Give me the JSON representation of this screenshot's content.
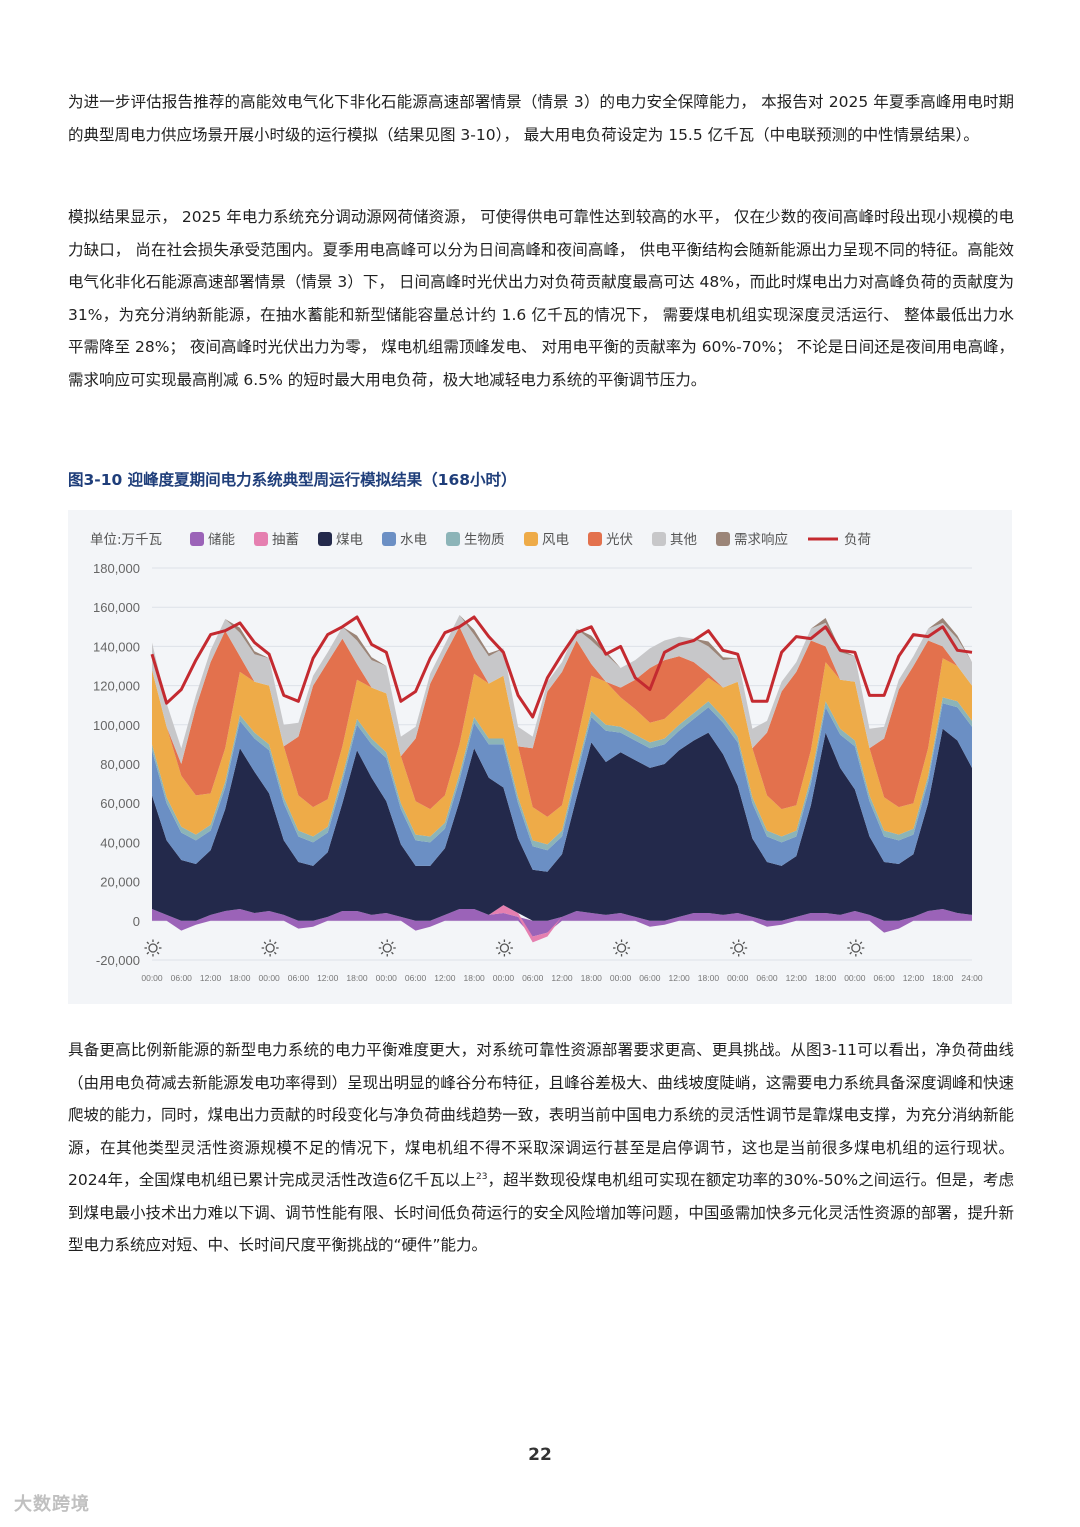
{
  "paragraphs": {
    "p1": "为进一步评估报告推荐的高能效电气化下非化石能源高速部署情景（情景 3）的电力安全保障能力， 本报告对 2025 年夏季高峰用电时期的典型周电力供应场景开展小时级的运行模拟（结果见图 3-10）， 最大用电负荷设定为 15.5 亿千瓦（中电联预测的中性情景结果）。",
    "p2": "模拟结果显示， 2025 年电力系统充分调动源网荷储资源， 可使得供电可靠性达到较高的水平， 仅在少数的夜间高峰时段出现小规模的电力缺口， 尚在社会损失承受范围内。夏季用电高峰可以分为日间高峰和夜间高峰， 供电平衡结构会随新能源出力呈现不同的特征。高能效电气化非化石能源高速部署情景（情景 3）下， 日间高峰时光伏出力对负荷贡献度最高可达 48%，而此时煤电出力对高峰负荷的贡献度为 31%，为充分消纳新能源，在抽水蓄能和新型储能容量总计约 1.6 亿千瓦的情况下， 需要煤电机组实现深度灵活运行、 整体最低出力水平需降至 28%； 夜间高峰时光伏出力为零， 煤电机组需顶峰发电、 对用电平衡的贡献率为 60%-70%； 不论是日间还是夜间用电高峰， 需求响应可实现最高削减 6.5% 的短时最大用电负荷，极大地减轻电力系统的平衡调节压力。",
    "p3_a": "具备更高比例新能源的新型电力系统的电力平衡难度更大，对系统可靠性资源部署要求更高、更具挑战。从图3-11可以看出，净负荷曲线（由用电负荷减去新能源发电功率得到）呈现出明显的峰谷分布特征，且峰谷差极大、曲线坡度陡峭，这需要电力系统具备深度调峰和快速爬坡的能力，同时，煤电出力贡献的时段变化与净负荷曲线趋势一致，表明当前中国电力系统的灵活性调节是靠煤电支撑，为充分消纳新能源，在其他类型灵活性资源规模不足的情况下，煤电机组不得不采取深调运行甚至是启停调节，这也是当前很多煤电机组的运行现状。2024年，全国煤电机组已累计完成灵活性改造6亿千瓦以上",
    "p3_sup": "23",
    "p3_b": "，超半数现役煤电机组可实现在额定功率的30%-50%之间运行。但是，考虑到煤电最小技术出力难以下调、调节性能有限、长时间低负荷运行的安全风险增加等问题，中国亟需加快多元化灵活性资源的部署，提升新型电力系统应对短、中、长时间尺度平衡挑战的“硬件”能力。"
  },
  "figure_title": "图3-10 迎峰度夏期间电力系统典型周运行模拟结果（168小时）",
  "page_number": "22",
  "watermark": "大数跨境",
  "chart_data": {
    "type": "area",
    "unit_label": "单位:万千瓦",
    "legend": [
      {
        "name": "储能",
        "color": "#9b63b8"
      },
      {
        "name": "抽蓄",
        "color": "#e57fb0"
      },
      {
        "name": "煤电",
        "color": "#23294b"
      },
      {
        "name": "水电",
        "color": "#6b8fc4"
      },
      {
        "name": "生物质",
        "color": "#8cb4b8"
      },
      {
        "name": "风电",
        "color": "#eeab48"
      },
      {
        "name": "光伏",
        "color": "#e3714d"
      },
      {
        "name": "其他",
        "color": "#c7c7c9"
      },
      {
        "name": "需求响应",
        "color": "#9b8578"
      },
      {
        "name": "负荷",
        "color": "#c42a30"
      }
    ],
    "ylim": [
      -20000,
      180000
    ],
    "yticks": [
      "180,000",
      "160,000",
      "140,000",
      "120,000",
      "100,000",
      "80,000",
      "60,000",
      "40,000",
      "20,000",
      "0",
      "-20,000"
    ],
    "xticks": [
      "00:00",
      "06:00",
      "12:00",
      "18:00",
      "00:00",
      "06:00",
      "12:00",
      "18:00",
      "00:00",
      "06:00",
      "12:00",
      "18:00",
      "00:00",
      "06:00",
      "12:00",
      "18:00",
      "00:00",
      "06:00",
      "12:00",
      "18:00",
      "00:00",
      "06:00",
      "12:00",
      "18:00",
      "00:00",
      "06:00",
      "12:00",
      "18:00",
      "24:00"
    ],
    "hours": [
      0,
      3,
      6,
      9,
      12,
      15,
      18,
      21,
      24,
      27,
      30,
      33,
      36,
      39,
      42,
      45,
      48,
      51,
      54,
      57,
      60,
      63,
      66,
      69,
      72,
      75,
      78,
      81,
      84,
      87,
      90,
      93,
      96,
      99,
      102,
      105,
      108,
      111,
      114,
      117,
      120,
      123,
      126,
      129,
      132,
      135,
      138,
      141,
      144,
      147,
      150,
      153,
      156,
      159,
      162,
      165,
      168
    ],
    "series": [
      {
        "name": "储能",
        "values": [
          6000,
          3000,
          -5000,
          -2000,
          3000,
          5000,
          6000,
          4000,
          5000,
          3000,
          -4000,
          -3000,
          2000,
          5000,
          5000,
          3000,
          4000,
          2000,
          -5000,
          -3000,
          3000,
          6000,
          6000,
          3000,
          4000,
          2000,
          -8000,
          -6000,
          2000,
          5000,
          4000,
          3000,
          4000,
          2000,
          -3000,
          -2000,
          2000,
          4000,
          4000,
          3000,
          4000,
          2000,
          -3000,
          -2000,
          2000,
          4000,
          4000,
          3000,
          5000,
          3000,
          -6000,
          -4000,
          2000,
          5000,
          6000,
          4000,
          3000
        ]
      },
      {
        "name": "抽蓄",
        "values": [
          0,
          0,
          0,
          0,
          0,
          0,
          0,
          0,
          0,
          0,
          0,
          0,
          0,
          0,
          0,
          0,
          0,
          0,
          0,
          0,
          0,
          0,
          0,
          0,
          4000,
          2000,
          -3000,
          -2000,
          0,
          0,
          0,
          0,
          0,
          0,
          0,
          0,
          0,
          0,
          0,
          0,
          0,
          0,
          0,
          0,
          0,
          0,
          0,
          0,
          0,
          0,
          0,
          0,
          0,
          0,
          0,
          0,
          0
        ]
      },
      {
        "name": "煤电",
        "values": [
          58000,
          38000,
          31000,
          29000,
          33000,
          52000,
          82000,
          72000,
          60000,
          38000,
          30000,
          28000,
          33000,
          55000,
          82000,
          70000,
          57000,
          37000,
          28000,
          28000,
          34000,
          55000,
          82000,
          70000,
          60000,
          38000,
          26000,
          25000,
          32000,
          58000,
          87000,
          78000,
          82000,
          80000,
          78000,
          80000,
          85000,
          88000,
          92000,
          82000,
          65000,
          40000,
          30000,
          28000,
          31000,
          55000,
          92000,
          75000,
          62000,
          40000,
          30000,
          29000,
          32000,
          55000,
          92000,
          88000,
          75000
        ]
      },
      {
        "name": "水电",
        "values": [
          23000,
          19000,
          14000,
          12000,
          10000,
          11000,
          14000,
          17000,
          22000,
          19000,
          13000,
          12000,
          10000,
          11000,
          13000,
          17000,
          22000,
          18000,
          13000,
          12000,
          10000,
          11000,
          13000,
          17000,
          22000,
          18000,
          12000,
          11000,
          9000,
          11000,
          13000,
          16000,
          10000,
          10000,
          10000,
          10000,
          10000,
          11000,
          13000,
          16000,
          22000,
          18000,
          13000,
          12000,
          10000,
          11000,
          13000,
          17000,
          22000,
          18000,
          13000,
          12000,
          10000,
          11000,
          13000,
          17000,
          21000
        ]
      },
      {
        "name": "生物质",
        "values": [
          3000,
          3000,
          3000,
          3000,
          3000,
          3000,
          3000,
          3000,
          3000,
          3000,
          3000,
          3000,
          3000,
          3000,
          3000,
          3000,
          3000,
          3000,
          3000,
          3000,
          3000,
          3000,
          3000,
          3000,
          3000,
          3000,
          3000,
          3000,
          3000,
          3000,
          3000,
          3000,
          3000,
          3000,
          3000,
          3000,
          3000,
          3000,
          3000,
          3000,
          3000,
          3000,
          3000,
          3000,
          3000,
          3000,
          3000,
          3000,
          3000,
          3000,
          3000,
          3000,
          3000,
          3000,
          3000,
          3000,
          3000
        ]
      },
      {
        "name": "风电",
        "values": [
          38000,
          36000,
          26000,
          20000,
          16000,
          17000,
          22000,
          26000,
          30000,
          26000,
          18000,
          15000,
          14000,
          15000,
          20000,
          26000,
          30000,
          24000,
          17000,
          14000,
          14000,
          15000,
          22000,
          28000,
          32000,
          26000,
          17000,
          14000,
          13000,
          14000,
          18000,
          22000,
          15000,
          13000,
          10000,
          10000,
          10000,
          11000,
          12000,
          15000,
          28000,
          25000,
          18000,
          14000,
          13000,
          14000,
          20000,
          25000,
          30000,
          24000,
          17000,
          14000,
          13000,
          14000,
          20000,
          18000,
          18000
        ]
      },
      {
        "name": "光伏",
        "values": [
          0,
          0,
          6000,
          45000,
          67000,
          60000,
          8000,
          0,
          0,
          0,
          30000,
          62000,
          70000,
          55000,
          8000,
          0,
          0,
          0,
          32000,
          64000,
          72000,
          60000,
          8000,
          0,
          0,
          0,
          30000,
          64000,
          68000,
          52000,
          6000,
          0,
          5000,
          15000,
          28000,
          30000,
          25000,
          15000,
          2000,
          0,
          0,
          0,
          32000,
          60000,
          68000,
          56000,
          8000,
          0,
          0,
          0,
          30000,
          60000,
          70000,
          55000,
          6000,
          0,
          0
        ]
      },
      {
        "name": "其他",
        "values": [
          14000,
          12000,
          8000,
          6000,
          6000,
          6000,
          12000,
          14000,
          14000,
          11000,
          7000,
          5000,
          5000,
          6000,
          12000,
          14000,
          14000,
          10000,
          6000,
          5000,
          5000,
          6000,
          12000,
          14000,
          14000,
          10000,
          6000,
          5000,
          5000,
          6000,
          12000,
          14000,
          10000,
          10000,
          10000,
          10000,
          10000,
          12000,
          14000,
          14000,
          12000,
          10000,
          6000,
          5000,
          5000,
          6000,
          12000,
          14000,
          13000,
          10000,
          6000,
          5000,
          5000,
          6000,
          12000,
          14000,
          12000
        ]
      },
      {
        "name": "需求响应",
        "values": [
          0,
          0,
          0,
          0,
          0,
          0,
          2500,
          1500,
          0,
          0,
          0,
          0,
          0,
          0,
          2500,
          1500,
          0,
          0,
          0,
          0,
          0,
          0,
          2500,
          1500,
          0,
          0,
          0,
          0,
          0,
          0,
          2500,
          1500,
          0,
          0,
          0,
          0,
          0,
          0,
          2500,
          1500,
          0,
          0,
          0,
          0,
          0,
          0,
          2500,
          1500,
          0,
          0,
          0,
          0,
          0,
          0,
          2500,
          1500,
          0
        ]
      },
      {
        "name": "负荷",
        "values": [
          136000,
          111000,
          118000,
          133000,
          146000,
          148000,
          152000,
          142000,
          136000,
          115000,
          112000,
          134000,
          146000,
          150000,
          155000,
          141000,
          137000,
          112000,
          117000,
          134000,
          147000,
          150000,
          155000,
          145000,
          137000,
          115000,
          104000,
          124000,
          136000,
          147000,
          150000,
          136000,
          140000,
          124000,
          118000,
          137000,
          141000,
          143000,
          148000,
          138000,
          136000,
          112000,
          112000,
          137000,
          145000,
          144000,
          150000,
          138000,
          137000,
          115000,
          115000,
          135000,
          146000,
          145000,
          150000,
          138000,
          137000
        ]
      }
    ]
  }
}
